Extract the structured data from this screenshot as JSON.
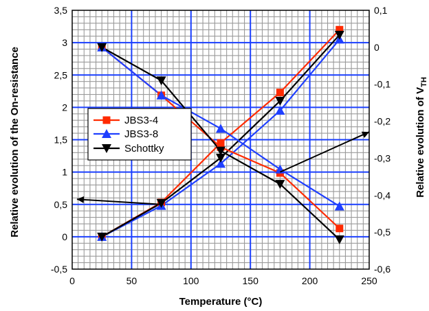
{
  "chart_data": {
    "type": "line",
    "xlabel": "Temperature (°C)",
    "ylabel_left": "Relative evolution of the On-resistance",
    "ylabel_right_main": "Relative evolution of V",
    "ylabel_right_sub": "TH",
    "xlim": [
      0,
      250
    ],
    "ylim_left": [
      -0.5,
      3.5
    ],
    "ylim_right": [
      -0.6,
      0.1
    ],
    "x_ticks": [
      "0",
      "50",
      "100",
      "150",
      "200",
      "250"
    ],
    "y_left_ticks": [
      "-0,5",
      "0",
      "0,5",
      "1",
      "1,5",
      "2",
      "2,5",
      "3",
      "3,5"
    ],
    "y_right_ticks": [
      "-0,6",
      "-0,5",
      "-0,4",
      "-0,3",
      "-0,2",
      "-0,1",
      "0",
      "0,1"
    ],
    "grid": true,
    "legend_position": "center-left",
    "colors": {
      "JBS3-4": "#ff2a00",
      "JBS3-8": "#1f3fff",
      "Schottky": "#000000",
      "major_grid": "#1a3fff",
      "minor_grid": "#9a9a9a"
    },
    "series": [
      {
        "name": "JBS3-4",
        "axis": "left",
        "marker": "square",
        "x": [
          25,
          75,
          125,
          175,
          225
        ],
        "values": [
          0.0,
          0.53,
          1.45,
          2.23,
          3.2
        ]
      },
      {
        "name": "JBS3-8",
        "axis": "left",
        "marker": "triangle-up",
        "x": [
          25,
          75,
          125,
          175,
          225
        ],
        "values": [
          0.0,
          0.48,
          1.13,
          1.95,
          3.05
        ]
      },
      {
        "name": "Schottky",
        "axis": "left",
        "marker": "triangle-down",
        "x": [
          25,
          75,
          125,
          175,
          225
        ],
        "values": [
          0.0,
          0.52,
          1.22,
          2.1,
          3.12
        ]
      },
      {
        "name": "JBS3-4",
        "axis": "right",
        "marker": "square",
        "x": [
          25,
          75,
          125,
          175,
          225
        ],
        "values": [
          0.0,
          -0.13,
          -0.27,
          -0.34,
          -0.49
        ]
      },
      {
        "name": "JBS3-8",
        "axis": "right",
        "marker": "triangle-up",
        "x": [
          25,
          75,
          125,
          175,
          225
        ],
        "values": [
          0.0,
          -0.13,
          -0.22,
          -0.33,
          -0.43
        ]
      },
      {
        "name": "Schottky",
        "axis": "right",
        "marker": "triangle-down",
        "x": [
          25,
          75,
          125,
          175,
          225
        ],
        "values": [
          0.0,
          -0.09,
          -0.28,
          -0.37,
          -0.52
        ]
      }
    ],
    "legend": [
      "JBS3-4",
      "JBS3-8",
      "Schottky"
    ]
  }
}
